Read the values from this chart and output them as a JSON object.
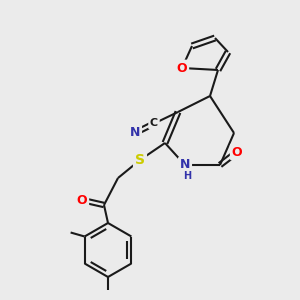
{
  "bg_color": "#ebebeb",
  "bond_color": "#1a1a1a",
  "atom_colors": {
    "O": "#ff0000",
    "N": "#3333aa",
    "S": "#cccc00",
    "C_label": "#1a1a1a"
  },
  "figsize": [
    3.0,
    3.0
  ],
  "dpi": 100
}
